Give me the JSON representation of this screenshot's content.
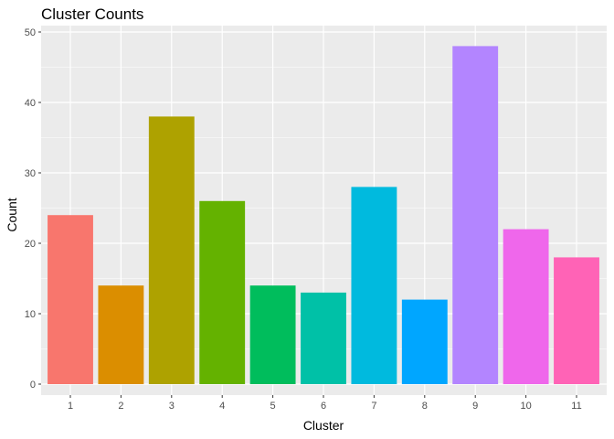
{
  "chart_data": {
    "type": "bar",
    "title": "Cluster Counts",
    "xlabel": "Cluster",
    "ylabel": "Count",
    "categories": [
      "1",
      "2",
      "3",
      "4",
      "5",
      "6",
      "7",
      "8",
      "9",
      "10",
      "11"
    ],
    "values": [
      24,
      14,
      38,
      26,
      14,
      13,
      28,
      12,
      48,
      22,
      18
    ],
    "colors": [
      "#F8766D",
      "#DB8E00",
      "#AEA200",
      "#64B200",
      "#00BD5C",
      "#00C1A7",
      "#00BADE",
      "#00A6FF",
      "#B385FF",
      "#EF67EB",
      "#FF63B6"
    ],
    "ylim": [
      0,
      50
    ],
    "yticks": [
      0,
      10,
      20,
      30,
      40,
      50
    ],
    "grid": true,
    "legend": "none",
    "panel_background": "#EBEBEB",
    "grid_color": "#FFFFFF"
  }
}
